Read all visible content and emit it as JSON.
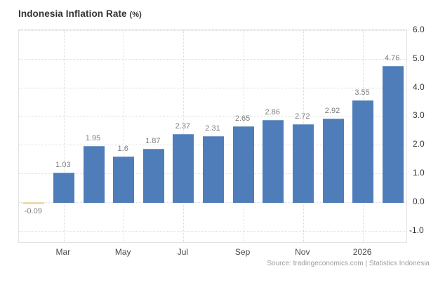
{
  "title": {
    "main": "Indonesia Inflation Rate",
    "unit": "(%)"
  },
  "source_text": "Source: tradingeconomics.com | Statistics Indonesia",
  "colors": {
    "bar_positive": "#4e7dba",
    "bar_negative": "#eedbab",
    "grid": "#dcdcdc",
    "plot_border": "#e3e3e3",
    "value_label": "#7f7f7f",
    "x_label": "#4a4a4a",
    "y_label": "#333333",
    "title_text": "#333333",
    "source_text_color": "#9c9c9c"
  },
  "chart_data": {
    "type": "bar",
    "title": "Indonesia Inflation Rate (%)",
    "xlabel": "",
    "ylabel": "",
    "values": [
      -0.09,
      1.03,
      1.95,
      1.6,
      1.87,
      2.37,
      2.31,
      2.65,
      2.86,
      2.72,
      2.92,
      3.55,
      4.76
    ],
    "value_labels": [
      "-0.09",
      "1.03",
      "1.95",
      "1.6",
      "1.87",
      "2.37",
      "2.31",
      "2.65",
      "2.86",
      "2.72",
      "2.92",
      "3.55",
      "4.76"
    ],
    "x_tick_labels": [
      "Mar",
      "May",
      "Jul",
      "Sep",
      "Nov",
      "2026"
    ],
    "x_tick_slot_indices": [
      1,
      3,
      5,
      7,
      9,
      11
    ],
    "y_tick_labels": [
      "6.0",
      "5.0",
      "4.0",
      "3.0",
      "2.0",
      "1.0",
      "0.0",
      "-1.0"
    ],
    "y_tick_values": [
      6.0,
      5.0,
      4.0,
      3.0,
      2.0,
      1.0,
      0.0,
      -1.0
    ],
    "ylim": [
      -1.45,
      6.0
    ],
    "grid": "dotted",
    "legend": "none",
    "axis_side": "right"
  }
}
